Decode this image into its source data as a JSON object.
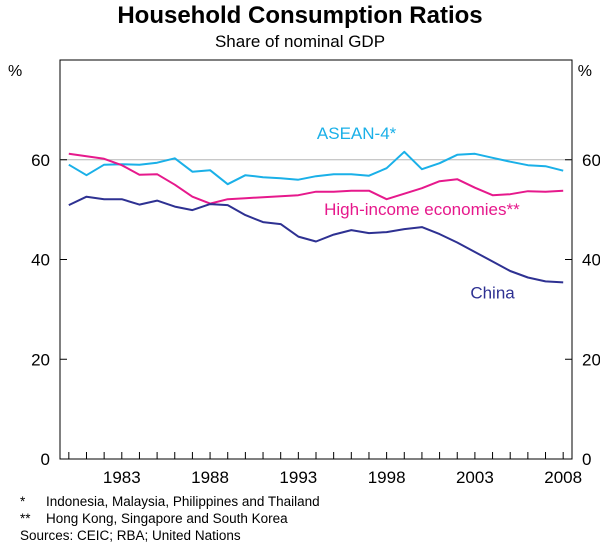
{
  "chart_data": {
    "type": "line",
    "title": "Household Consumption Ratios",
    "subtitle": "Share of nominal GDP",
    "ylabel_left": "%",
    "ylabel_right": "%",
    "ylim": [
      0,
      80
    ],
    "yticks": [
      0,
      20,
      40,
      60
    ],
    "xlim": [
      1979.5,
      2008.5
    ],
    "xticks": [
      1983,
      1988,
      1993,
      1998,
      2003,
      2008
    ],
    "grid": false,
    "x": [
      1980,
      1981,
      1982,
      1983,
      1984,
      1985,
      1986,
      1987,
      1988,
      1989,
      1990,
      1991,
      1992,
      1993,
      1994,
      1995,
      1996,
      1997,
      1998,
      1999,
      2000,
      2001,
      2002,
      2003,
      2004,
      2005,
      2006,
      2007,
      2008
    ],
    "series": [
      {
        "name": "ASEAN-4*",
        "color": "#1ab0e8",
        "values": [
          59.0,
          56.9,
          59.0,
          59.1,
          59.0,
          59.4,
          60.3,
          57.6,
          57.9,
          55.1,
          56.9,
          56.5,
          56.3,
          56.0,
          56.7,
          57.1,
          57.1,
          56.8,
          58.3,
          61.6,
          58.1,
          59.3,
          61.0,
          61.2,
          60.4,
          59.6,
          58.9,
          58.7,
          57.8
        ]
      },
      {
        "name": "High-income economies**",
        "color": "#e6198c",
        "values": [
          61.2,
          60.7,
          60.2,
          58.9,
          57.0,
          57.1,
          55.0,
          52.6,
          51.2,
          52.1,
          52.3,
          52.5,
          52.7,
          52.9,
          53.6,
          53.6,
          53.8,
          53.8,
          52.1,
          53.2,
          54.3,
          55.7,
          56.1,
          54.4,
          52.9,
          53.1,
          53.7,
          53.6,
          53.8
        ]
      },
      {
        "name": "China",
        "color": "#2e3192",
        "values": [
          50.9,
          52.6,
          52.1,
          52.1,
          51.0,
          51.8,
          50.6,
          49.9,
          51.1,
          50.9,
          48.9,
          47.5,
          47.1,
          44.6,
          43.6,
          45.0,
          45.9,
          45.3,
          45.5,
          46.1,
          46.5,
          45.1,
          43.4,
          41.5,
          39.6,
          37.7,
          36.4,
          35.6,
          35.4
        ]
      }
    ],
    "annotations": {
      "series_0_label": "ASEAN-4*",
      "series_1_label": "High-income economies**",
      "series_2_label": "China"
    }
  },
  "footnotes": [
    {
      "mark": "*",
      "text": "Indonesia, Malaysia, Philippines and Thailand"
    },
    {
      "mark": "**",
      "text": "Hong Kong, Singapore and South Korea"
    }
  ],
  "sources": "Sources: CEIC; RBA; United Nations"
}
